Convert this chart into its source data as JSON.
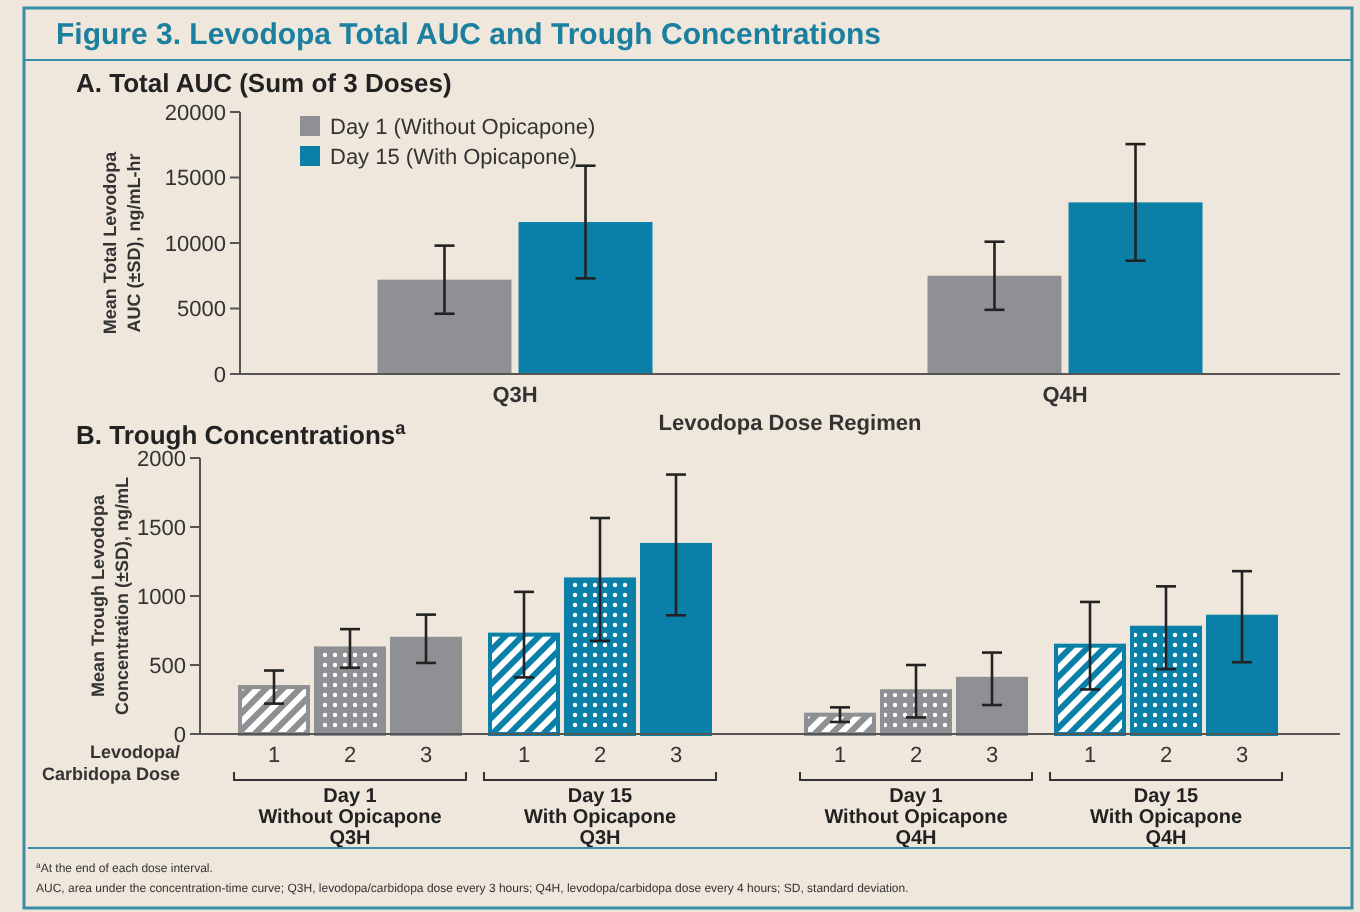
{
  "chart_data": [
    {
      "type": "bar",
      "title": "Figure 3. Levodopa Total AUC and Trough Concentrations",
      "subtitle": "A. Total AUC (Sum of 3 Doses)",
      "xlabel": "Levodopa Dose Regimen",
      "ylabel": "Mean Total Levodopa\nAUC (±SD), ng/mL-hr",
      "categories": [
        "Q3H",
        "Q4H"
      ],
      "series": [
        {
          "name": "Day 1 (Without Opicapone)",
          "color": "#8f9093",
          "values": [
            7200,
            7500
          ],
          "errors": [
            2600,
            2600
          ]
        },
        {
          "name": "Day 15 (With Opicapone)",
          "color": "#0a7fa8",
          "values": [
            11600,
            13100
          ],
          "errors": [
            4300,
            4450
          ]
        }
      ],
      "ylim": [
        0,
        20000
      ],
      "yticks": [
        0,
        5000,
        10000,
        15000,
        20000
      ],
      "legend": "top left"
    },
    {
      "type": "bar",
      "title": "B. Trough Concentrations$^{a}$",
      "xlabel": "Levodopa/\nCarbidopa Dose",
      "ylabel": "Mean Trough Levodopa\nConcentration (±SD), ng/mL",
      "categories": [
        "1",
        "2",
        "3",
        "1",
        "2",
        "3",
        "1",
        "2",
        "3",
        "1",
        "2",
        "3"
      ],
      "values": [
        340,
        620,
        690,
        720,
        1120,
        1370,
        140,
        310,
        400,
        640,
        770,
        850
      ],
      "errors": [
        120,
        140,
        175,
        310,
        445,
        510,
        53,
        190,
        190,
        317,
        300,
        330
      ],
      "colors": [
        "#8f9093",
        "#8f9093",
        "#8f9093",
        "#0a7fa8",
        "#0a7fa8",
        "#0a7fa8",
        "#8f9093",
        "#8f9093",
        "#8f9093",
        "#0a7fa8",
        "#0a7fa8",
        "#0a7fa8"
      ],
      "ylim": [
        0,
        2000
      ],
      "yticks": [
        0,
        500,
        1000,
        1500,
        2000
      ],
      "annotations": [
        "Day 1\nWithout Opicapone\nQ3H",
        "Day 15\nWith Opicapone\nQ3H",
        "Day 1\nWithout Opicapone\nQ4H",
        "Day 15\nWith Opicapone\nQ4H",
        "$^{a}$At the end of each dose interval.",
        "AUC, area under the concentration-time curve; Q3H, levodopa/carbidopa dose every 3 hours; Q4H, levodopa/carbidopa dose every 4 hours; SD, standard deviation."
      ]
    }
  ]
}
